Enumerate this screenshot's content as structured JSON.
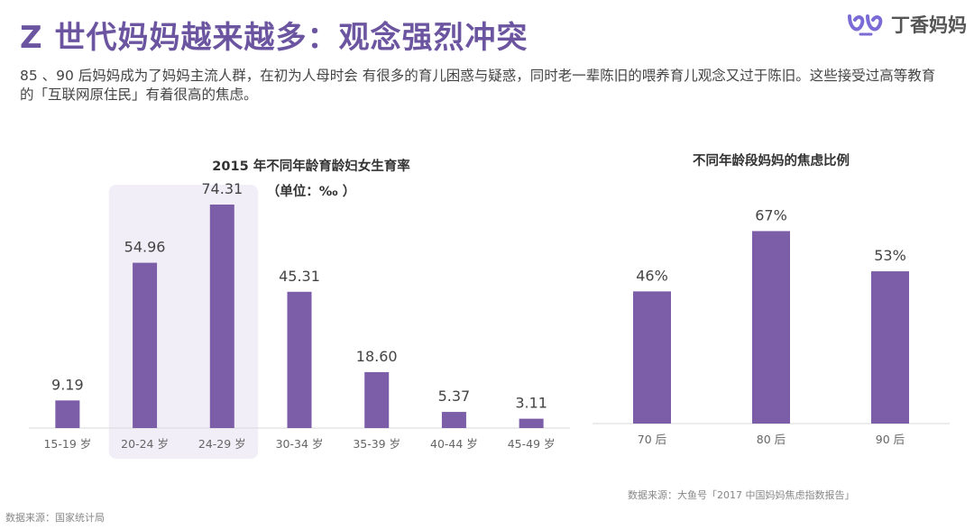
{
  "header": {
    "title": "Z 世代妈妈越来越多：观念强烈冲突",
    "subtitle": "85 、90 后妈妈成为了妈妈主流人群，在初为人母时会 有很多的育儿困惑与疑惑，同时老一辈陈旧的喂养育儿观念又过于陈旧。这些接受过高等教育的「互联网原住民」有着很高的焦虑。"
  },
  "logo": {
    "text": "丁香妈妈",
    "icon": "dxy-mama-logo-icon",
    "color": "#7b6bd6"
  },
  "colors": {
    "accent": "#7b5ea7",
    "title": "#6c55a0",
    "highlight": "#f1eef7"
  },
  "chart_data": [
    {
      "type": "bar",
      "title": "2015 年不同年龄育龄妇女生育率",
      "subtitle": "（单位：‰ ）",
      "categories": [
        "15-19 岁",
        "20-24 岁",
        "24-29 岁",
        "30-34 岁",
        "35-39 岁",
        "40-44 岁",
        "45-49 岁"
      ],
      "values": [
        9.19,
        54.96,
        74.31,
        45.31,
        18.6,
        5.37,
        3.11
      ],
      "value_labels": [
        "9.19",
        "54.96",
        "74.31",
        "45.31",
        "18.60",
        "5.37",
        "3.11"
      ],
      "ylim": [
        0,
        80
      ],
      "highlight_categories": [
        "20-24 岁",
        "24-29 岁"
      ],
      "grid": false
    },
    {
      "type": "bar",
      "title": "不同年龄段妈妈的焦虑比例",
      "categories": [
        "70 后",
        "80 后",
        "90 后"
      ],
      "values": [
        46,
        67,
        53
      ],
      "value_labels": [
        "46%",
        "67%",
        "53%"
      ],
      "ylim": [
        0,
        80
      ],
      "grid": false
    }
  ],
  "sources": {
    "left": "数据来源：国家统计局",
    "right": "数据来源：大鱼号「2017 中国妈妈焦虑指数报告」"
  }
}
